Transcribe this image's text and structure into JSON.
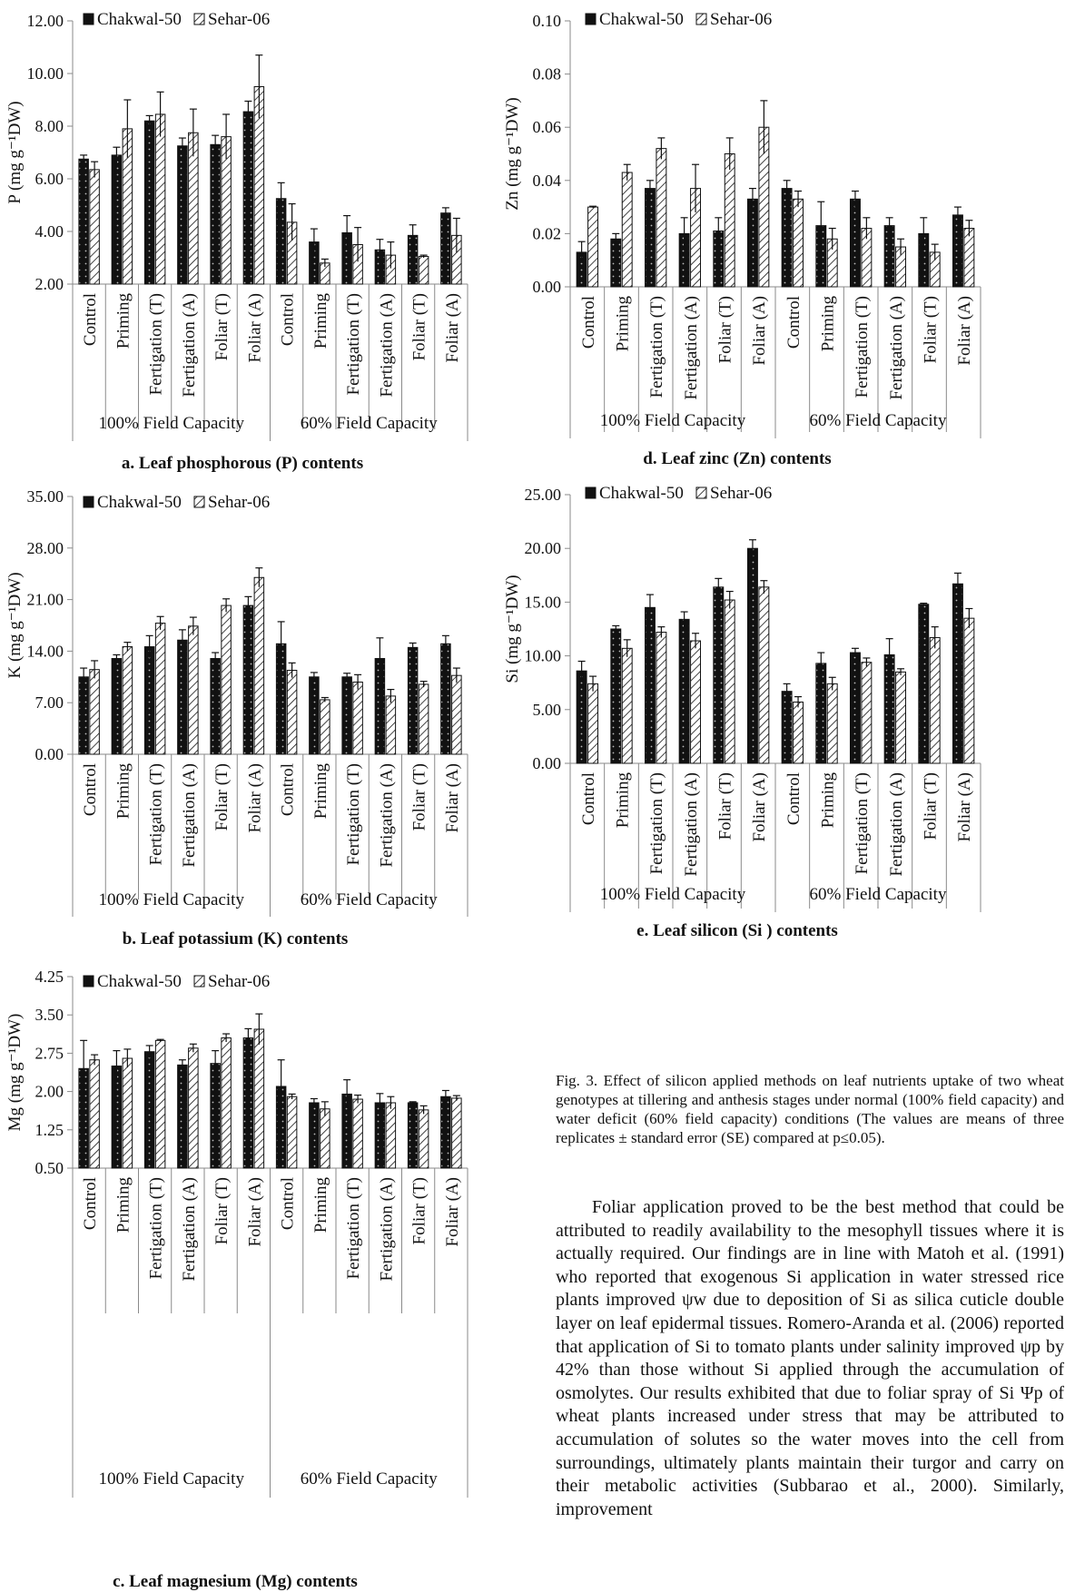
{
  "legend": {
    "series_1": "Chakwal-50",
    "series_2": "Sehar-06"
  },
  "groups": [
    "100% Field Capacity",
    "60% Field Capacity"
  ],
  "colors": {
    "chakwal": "#111111",
    "sehar": "#ffffff",
    "axis": "#8a8a8a"
  },
  "chart_data": [
    {
      "id": "a",
      "type": "bar",
      "subtitle": "a. Leaf phosphorous (P) contents",
      "ylabel": "P (mg g⁻¹DW)",
      "ylim": [
        2.0,
        12.0
      ],
      "yticks": [
        "2.00",
        "4.00",
        "6.00",
        "8.00",
        "10.00",
        "12.00"
      ],
      "ytick_values": [
        2,
        4,
        6,
        8,
        10,
        12
      ],
      "categories": [
        "Control",
        "Priming",
        "Fertigation (T)",
        "Fertigation (A)",
        "Foliar (T)",
        "Foliar (A)",
        "Control",
        "Priming",
        "Fertigation (T)",
        "Fertigation (A)",
        "Foliar (T)",
        "Foliar (A)"
      ],
      "series": [
        {
          "name": "Chakwal-50",
          "values": [
            6.75,
            6.9,
            8.2,
            7.25,
            7.3,
            8.55,
            5.25,
            3.6,
            3.95,
            3.3,
            3.85,
            4.7
          ],
          "errors": [
            0.15,
            0.3,
            0.2,
            0.3,
            0.35,
            0.4,
            0.6,
            0.5,
            0.65,
            0.4,
            0.4,
            0.2
          ]
        },
        {
          "name": "Sehar-06",
          "values": [
            6.35,
            7.9,
            8.45,
            7.75,
            7.6,
            9.5,
            4.35,
            2.8,
            3.5,
            3.1,
            3.05,
            3.85
          ],
          "errors": [
            0.3,
            1.1,
            0.85,
            0.9,
            0.85,
            1.2,
            0.7,
            0.15,
            0.65,
            0.5,
            0.05,
            0.65
          ]
        }
      ]
    },
    {
      "id": "b",
      "type": "bar",
      "subtitle": "b. Leaf potassium (K) contents",
      "ylabel": "K (mg g⁻¹DW)",
      "ylim": [
        0.0,
        35.0
      ],
      "yticks": [
        "0.00",
        "7.00",
        "14.00",
        "21.00",
        "28.00",
        "35.00"
      ],
      "ytick_values": [
        0,
        7,
        14,
        21,
        28,
        35
      ],
      "categories": [
        "Control",
        "Priming",
        "Fertigation (T)",
        "Fertigation (A)",
        "Foliar (T)",
        "Foliar (A)",
        "Control",
        "Priming",
        "Fertigation (T)",
        "Fertigation (A)",
        "Foliar (T)",
        "Foliar (A)"
      ],
      "series": [
        {
          "name": "Chakwal-50",
          "values": [
            10.5,
            13.0,
            14.6,
            15.5,
            13.0,
            20.2,
            15.0,
            10.5,
            10.5,
            13.0,
            14.5,
            15.0
          ],
          "errors": [
            1.2,
            0.5,
            1.5,
            1.4,
            0.8,
            1.2,
            3.0,
            0.6,
            0.5,
            2.8,
            0.6,
            1.1
          ]
        },
        {
          "name": "Sehar-06",
          "values": [
            11.5,
            14.6,
            17.8,
            17.4,
            20.2,
            24.0,
            11.4,
            7.4,
            9.8,
            7.9,
            9.5,
            10.7
          ],
          "errors": [
            1.2,
            0.6,
            0.9,
            1.2,
            0.9,
            1.3,
            1.0,
            0.3,
            1.0,
            0.9,
            0.4,
            1.0
          ]
        }
      ]
    },
    {
      "id": "c",
      "type": "bar",
      "subtitle": "c. Leaf magnesium (Mg) contents",
      "ylabel": "Mg (mg g⁻¹DW)",
      "ylim": [
        0.5,
        4.25
      ],
      "yticks": [
        "0.50",
        "1.25",
        "2.00",
        "2.75",
        "3.50",
        "4.25"
      ],
      "ytick_values": [
        0.5,
        1.25,
        2.0,
        2.75,
        3.5,
        4.25
      ],
      "categories": [
        "Control",
        "Priming",
        "Fertigation (T)",
        "Fertigation (A)",
        "Foliar (T)",
        "Foliar (A)",
        "Control",
        "Priming",
        "Fertigation (T)",
        "Fertigation (A)",
        "Foliar (T)",
        "Foliar (A)"
      ],
      "series": [
        {
          "name": "Chakwal-50",
          "values": [
            2.45,
            2.5,
            2.78,
            2.52,
            2.55,
            3.05,
            2.1,
            1.78,
            1.95,
            1.78,
            1.78,
            1.9
          ],
          "errors": [
            0.55,
            0.3,
            0.12,
            0.1,
            0.25,
            0.18,
            0.52,
            0.08,
            0.28,
            0.18,
            0.02,
            0.12
          ]
        },
        {
          "name": "Sehar-06",
          "values": [
            2.62,
            2.65,
            3.0,
            2.85,
            3.05,
            3.22,
            1.9,
            1.66,
            1.85,
            1.78,
            1.64,
            1.87
          ],
          "errors": [
            0.1,
            0.18,
            0.02,
            0.08,
            0.08,
            0.3,
            0.05,
            0.14,
            0.08,
            0.12,
            0.08,
            0.05
          ]
        }
      ]
    },
    {
      "id": "d",
      "type": "bar",
      "subtitle": "d. Leaf zinc (Zn) contents",
      "ylabel": "Zn (mg g⁻¹DW)",
      "ylim": [
        0.0,
        0.1
      ],
      "yticks": [
        "0.00",
        "0.02",
        "0.04",
        "0.06",
        "0.08",
        "0.10"
      ],
      "ytick_values": [
        0,
        0.02,
        0.04,
        0.06,
        0.08,
        0.1
      ],
      "categories": [
        "Control",
        "Priming",
        "Fertigation (T)",
        "Fertigation (A)",
        "Foliar (T)",
        "Foliar (A)",
        "Control",
        "Priming",
        "Fertigation (T)",
        "Fertigation (A)",
        "Foliar (T)",
        "Foliar (A)"
      ],
      "series": [
        {
          "name": "Chakwal-50",
          "values": [
            0.013,
            0.018,
            0.037,
            0.02,
            0.021,
            0.033,
            0.037,
            0.023,
            0.033,
            0.023,
            0.02,
            0.027
          ],
          "errors": [
            0.004,
            0.002,
            0.003,
            0.006,
            0.005,
            0.004,
            0.003,
            0.009,
            0.003,
            0.003,
            0.006,
            0.003
          ]
        },
        {
          "name": "Sehar-06",
          "values": [
            0.03,
            0.043,
            0.052,
            0.037,
            0.05,
            0.06,
            0.033,
            0.018,
            0.022,
            0.015,
            0.013,
            0.022
          ],
          "errors": [
            0.0003,
            0.003,
            0.004,
            0.009,
            0.006,
            0.01,
            0.003,
            0.004,
            0.004,
            0.003,
            0.003,
            0.003
          ]
        }
      ]
    },
    {
      "id": "e",
      "type": "bar",
      "subtitle": "e. Leaf silicon (Si ) contents",
      "ylabel": "Si (mg g⁻¹DW)",
      "ylim": [
        0.0,
        25.0
      ],
      "yticks": [
        "0.00",
        "5.00",
        "10.00",
        "15.00",
        "20.00",
        "25.00"
      ],
      "ytick_values": [
        0,
        5,
        10,
        15,
        20,
        25
      ],
      "categories": [
        "Control",
        "Priming",
        "Fertigation (T)",
        "Fertigation (A)",
        "Foliar (T)",
        "Foliar (A)",
        "Control",
        "Priming",
        "Fertigation (T)",
        "Fertigation (A)",
        "Foliar (T)",
        "Foliar (A)"
      ],
      "series": [
        {
          "name": "Chakwal-50",
          "values": [
            8.6,
            12.5,
            14.5,
            13.4,
            16.4,
            20.0,
            6.7,
            9.3,
            10.3,
            10.1,
            14.8,
            16.7
          ],
          "errors": [
            0.9,
            0.3,
            1.2,
            0.7,
            0.8,
            0.8,
            0.7,
            1.0,
            0.4,
            1.5,
            0.1,
            1.0
          ]
        },
        {
          "name": "Sehar-06",
          "values": [
            7.4,
            10.7,
            12.2,
            11.4,
            15.2,
            16.4,
            5.7,
            7.4,
            9.4,
            8.5,
            11.7,
            13.5
          ],
          "errors": [
            0.7,
            0.8,
            0.5,
            0.7,
            0.8,
            0.6,
            0.5,
            0.6,
            0.4,
            0.3,
            1.0,
            0.9
          ]
        }
      ]
    }
  ],
  "caption": "Fig. 3. Effect of silicon applied methods on leaf nutrients uptake of two wheat genotypes at tillering and anthesis stages under normal (100% field capacity) and water deficit (60% field capacity) conditions (The values are means of three replicates ± standard error (SE) compared at p≤0.05).",
  "paragraph": "Foliar application proved to be the best method that could be attributed to readily availability to the mesophyll tissues where it is actually required. Our findings are in line with Matoh et al. (1991) who reported that exogenous Si application in water stressed rice plants improved ψw due to deposition of Si as silica cuticle double layer on leaf epidermal tissues. Romero-Aranda et al. (2006) reported that application of Si to tomato plants under salinity improved ψp by 42% than those without Si applied through the accumulation of osmolytes. Our results exhibited that due to foliar spray of Si Ψp of wheat plants increased under stress that may be attributed to accumulation of solutes so the water moves into the cell from surroundings, ultimately plants maintain their turgor and carry on their metabolic activities (Subbarao et al., 2000). Similarly, improvement"
}
